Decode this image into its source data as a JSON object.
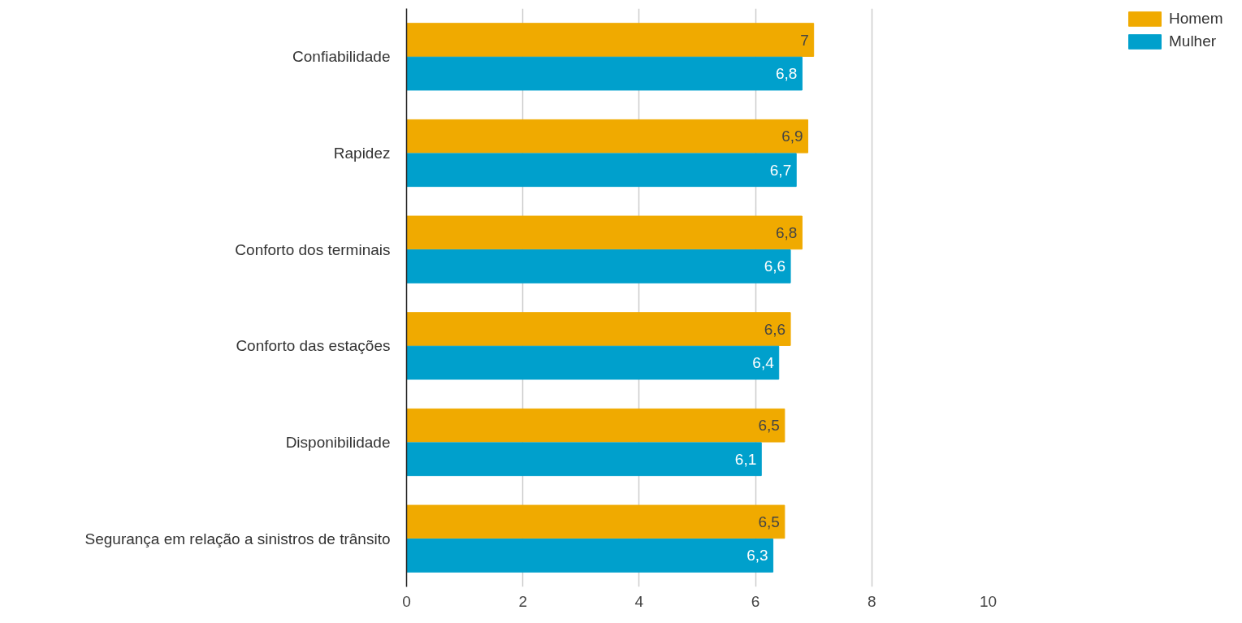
{
  "chart_data": {
    "type": "bar",
    "orientation": "horizontal",
    "categories": [
      "Confiabilidade",
      "Rapidez",
      "Conforto dos terminais",
      "Conforto das estações",
      "Disponibilidade",
      "Segurança em relação a sinistros de trânsito"
    ],
    "series": [
      {
        "name": "Homem",
        "color": "#f0aa00",
        "values": [
          7,
          6.9,
          6.8,
          6.6,
          6.5,
          6.5
        ],
        "value_labels": [
          "7",
          "6,9",
          "6,8",
          "6,6",
          "6,5",
          "6,5"
        ]
      },
      {
        "name": "Mulher",
        "color": "#00a0cc",
        "values": [
          6.8,
          6.7,
          6.6,
          6.4,
          6.1,
          6.3
        ],
        "value_labels": [
          "6,8",
          "6,7",
          "6,6",
          "6,4",
          "6,1",
          "6,3"
        ]
      }
    ],
    "xlim": [
      0,
      10
    ],
    "xticks": [
      0,
      2,
      4,
      6,
      8,
      10
    ],
    "grid": "x",
    "legend": "top right"
  }
}
